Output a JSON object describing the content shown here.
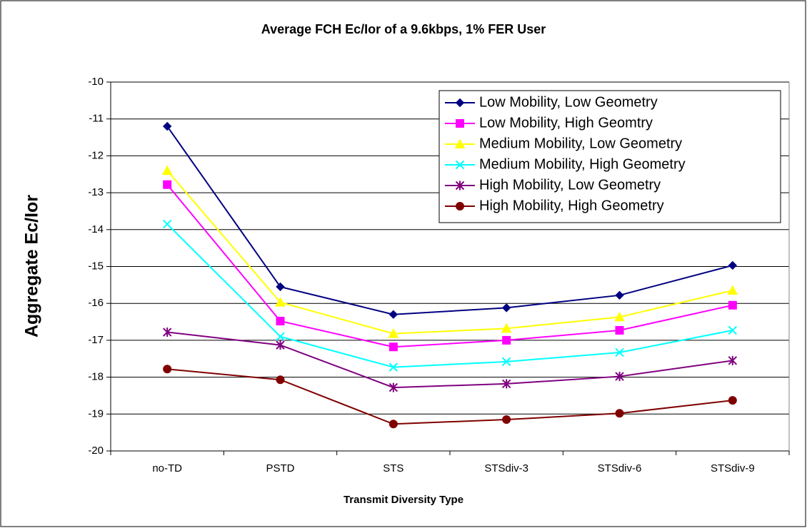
{
  "chart_data": {
    "type": "line",
    "title": "Average FCH Ec/Ior of a 9.6kbps, 1% FER User",
    "x_label": "Transmit Diversity Type",
    "y_label": "Aggregate Ec/Ior",
    "categories": [
      "no-TD",
      "PSTD",
      "STS",
      "STSdiv-3",
      "STSdiv-6",
      "STSdiv-9"
    ],
    "series": [
      {
        "name": "Low Mobility, Low Geometry",
        "color": "#000080",
        "marker": "diamond",
        "values": [
          -11.2,
          -15.55,
          -16.3,
          -16.12,
          -15.78,
          -14.97
        ]
      },
      {
        "name": "Low Mobility, High Geomtry",
        "color": "#ff00ff",
        "marker": "square",
        "values": [
          -12.78,
          -16.48,
          -17.18,
          -17.0,
          -16.73,
          -16.05
        ]
      },
      {
        "name": "Medium Mobility, Low Geometry",
        "color": "#ffff00",
        "marker": "triangle",
        "values": [
          -12.4,
          -15.97,
          -16.82,
          -16.68,
          -16.37,
          -15.65
        ]
      },
      {
        "name": "Medium Mobility, High Geometry",
        "color": "#00ffff",
        "marker": "x",
        "values": [
          -13.85,
          -16.9,
          -17.73,
          -17.58,
          -17.33,
          -16.73
        ]
      },
      {
        "name": "High Mobility, Low Geometry",
        "color": "#800080",
        "marker": "star",
        "values": [
          -16.78,
          -17.13,
          -18.28,
          -18.18,
          -17.98,
          -17.55
        ]
      },
      {
        "name": "High Mobility, High Geometry",
        "color": "#800000",
        "marker": "circle",
        "values": [
          -17.78,
          -18.07,
          -19.27,
          -19.15,
          -18.98,
          -18.63
        ]
      }
    ],
    "ylim": [
      -20,
      -10
    ],
    "yticks": [
      -20,
      -19,
      -18,
      -17,
      -16,
      -15,
      -14,
      -13,
      -12,
      -11,
      -10
    ],
    "grid": true,
    "legend_position": "upper right"
  }
}
